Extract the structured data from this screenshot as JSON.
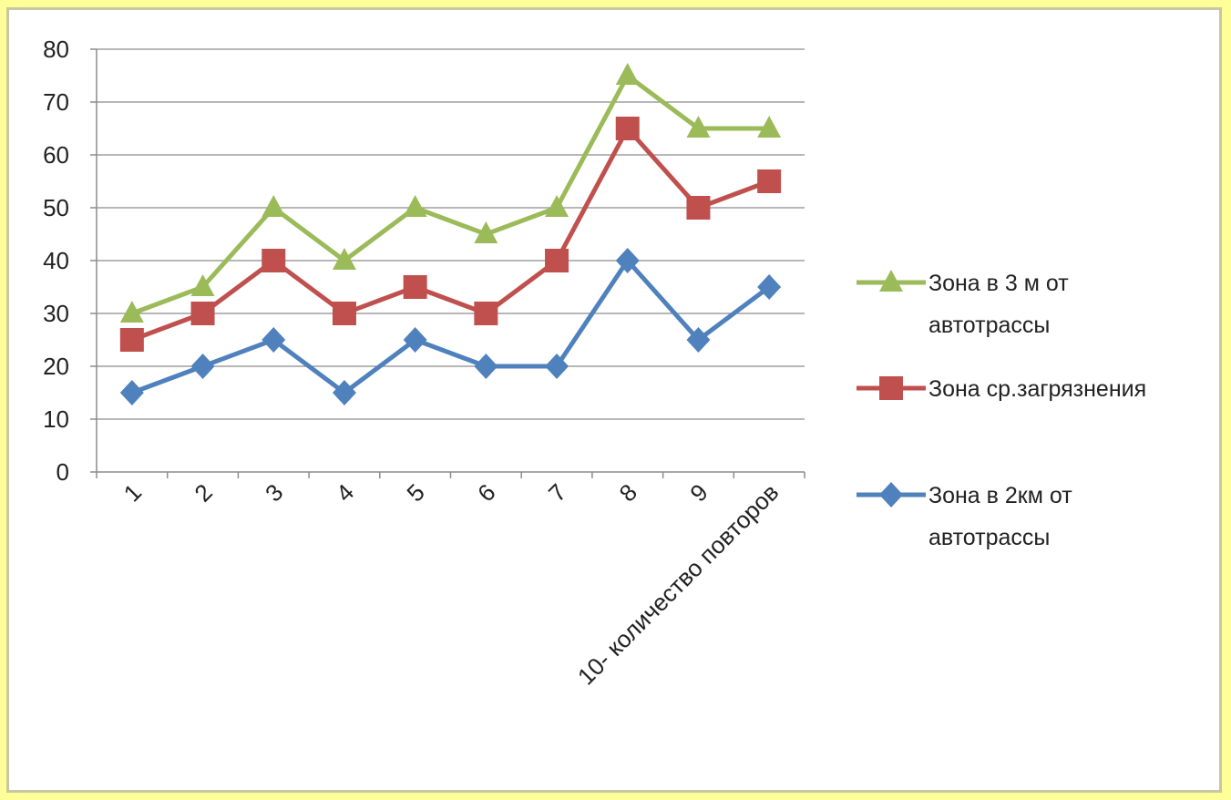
{
  "chart_data": {
    "type": "line",
    "categories": [
      "1",
      "2",
      "3",
      "4",
      "5",
      "6",
      "7",
      "8",
      "9",
      "10- количество повторов"
    ],
    "series": [
      {
        "name": "Зона в 3 м от автотрассы",
        "values": [
          30,
          35,
          50,
          40,
          50,
          45,
          50,
          75,
          65,
          65
        ],
        "color": "#9bbb59",
        "marker": "triangle"
      },
      {
        "name": "Зона ср.загрязнения",
        "values": [
          25,
          30,
          40,
          30,
          35,
          30,
          40,
          65,
          50,
          55
        ],
        "color": "#c0504d",
        "marker": "square"
      },
      {
        "name": "Зона в 2км от автотрассы",
        "values": [
          15,
          20,
          25,
          15,
          25,
          20,
          20,
          40,
          25,
          35
        ],
        "color": "#4f81bd",
        "marker": "diamond"
      }
    ],
    "yticks": [
      0,
      10,
      20,
      30,
      40,
      50,
      60,
      70,
      80
    ],
    "ylim": [
      0,
      80
    ],
    "grid": true,
    "legend_position": "right",
    "legend_lines": [
      [
        "Зона в 3 м от",
        "автотрассы"
      ],
      [
        "Зона ср.загрязнения"
      ],
      [
        "Зона в 2км от",
        "автотрассы"
      ]
    ]
  }
}
